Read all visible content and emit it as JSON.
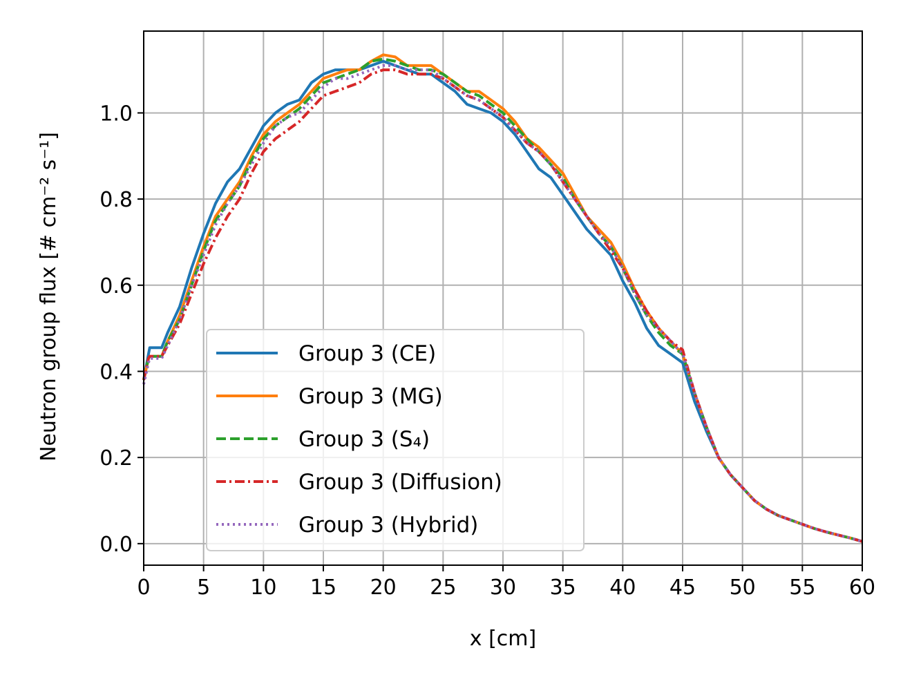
{
  "chart_data": {
    "type": "line",
    "xlabel": "x [cm]",
    "ylabel": "Neutron group flux [# cm⁻² s⁻¹]",
    "xlim": [
      0,
      60
    ],
    "ylim": [
      -0.05,
      1.19
    ],
    "xticks": [
      0,
      5,
      10,
      15,
      20,
      25,
      30,
      35,
      40,
      45,
      50,
      55,
      60
    ],
    "xtick_labels": [
      "0",
      "5",
      "10",
      "15",
      "20",
      "25",
      "30",
      "35",
      "40",
      "45",
      "50",
      "55",
      "60"
    ],
    "yticks": [
      0.0,
      0.2,
      0.4,
      0.6,
      0.8,
      1.0
    ],
    "ytick_labels": [
      "0.0",
      "0.2",
      "0.4",
      "0.6",
      "0.8",
      "1.0"
    ],
    "grid": true,
    "legend_position": "lower-left",
    "series": [
      {
        "name": "Group 3 (CE)",
        "color": "#1f77b4",
        "dash": "solid",
        "points": [
          [
            0,
            0.38
          ],
          [
            0.4,
            0.44
          ],
          [
            0.5,
            0.455
          ],
          [
            1.5,
            0.455
          ],
          [
            2,
            0.49
          ],
          [
            3,
            0.55
          ],
          [
            4,
            0.64
          ],
          [
            5,
            0.72
          ],
          [
            6,
            0.79
          ],
          [
            7,
            0.84
          ],
          [
            8,
            0.87
          ],
          [
            9,
            0.92
          ],
          [
            10,
            0.97
          ],
          [
            11,
            1.0
          ],
          [
            12,
            1.02
          ],
          [
            13,
            1.03
          ],
          [
            14,
            1.07
          ],
          [
            15,
            1.09
          ],
          [
            16,
            1.1
          ],
          [
            17,
            1.1
          ],
          [
            18,
            1.1
          ],
          [
            19,
            1.11
          ],
          [
            20,
            1.12
          ],
          [
            21,
            1.11
          ],
          [
            22,
            1.1
          ],
          [
            23,
            1.09
          ],
          [
            24,
            1.09
          ],
          [
            25,
            1.07
          ],
          [
            26,
            1.05
          ],
          [
            27,
            1.02
          ],
          [
            28,
            1.01
          ],
          [
            29,
            1.0
          ],
          [
            30,
            0.98
          ],
          [
            31,
            0.95
          ],
          [
            32,
            0.91
          ],
          [
            33,
            0.87
          ],
          [
            34,
            0.85
          ],
          [
            35,
            0.81
          ],
          [
            36,
            0.77
          ],
          [
            37,
            0.73
          ],
          [
            38,
            0.7
          ],
          [
            39,
            0.67
          ],
          [
            40,
            0.61
          ],
          [
            41,
            0.56
          ],
          [
            42,
            0.5
          ],
          [
            43,
            0.46
          ],
          [
            44,
            0.44
          ],
          [
            45,
            0.42
          ],
          [
            46,
            0.33
          ],
          [
            47,
            0.26
          ],
          [
            48,
            0.2
          ],
          [
            49,
            0.16
          ],
          [
            50,
            0.13
          ],
          [
            51,
            0.1
          ],
          [
            52,
            0.08
          ],
          [
            53,
            0.065
          ],
          [
            54,
            0.055
          ],
          [
            55,
            0.045
          ],
          [
            56,
            0.035
          ],
          [
            57,
            0.027
          ],
          [
            58,
            0.02
          ],
          [
            59,
            0.013
          ],
          [
            60,
            0.005
          ]
        ]
      },
      {
        "name": "Group 3 (MG)",
        "color": "#ff7f0e",
        "dash": "solid",
        "points": [
          [
            0,
            0.38
          ],
          [
            0.4,
            0.43
          ],
          [
            0.5,
            0.435
          ],
          [
            1.5,
            0.435
          ],
          [
            2,
            0.47
          ],
          [
            3,
            0.53
          ],
          [
            4,
            0.61
          ],
          [
            5,
            0.69
          ],
          [
            6,
            0.76
          ],
          [
            7,
            0.8
          ],
          [
            8,
            0.84
          ],
          [
            9,
            0.9
          ],
          [
            10,
            0.95
          ],
          [
            11,
            0.98
          ],
          [
            12,
            1.0
          ],
          [
            13,
            1.02
          ],
          [
            14,
            1.05
          ],
          [
            15,
            1.08
          ],
          [
            16,
            1.09
          ],
          [
            17,
            1.1
          ],
          [
            18,
            1.1
          ],
          [
            19,
            1.12
          ],
          [
            20,
            1.135
          ],
          [
            21,
            1.13
          ],
          [
            22,
            1.11
          ],
          [
            23,
            1.11
          ],
          [
            24,
            1.11
          ],
          [
            25,
            1.09
          ],
          [
            26,
            1.07
          ],
          [
            27,
            1.05
          ],
          [
            28,
            1.05
          ],
          [
            29,
            1.03
          ],
          [
            30,
            1.01
          ],
          [
            31,
            0.98
          ],
          [
            32,
            0.94
          ],
          [
            33,
            0.92
          ],
          [
            34,
            0.89
          ],
          [
            35,
            0.86
          ],
          [
            36,
            0.81
          ],
          [
            37,
            0.76
          ],
          [
            38,
            0.73
          ],
          [
            39,
            0.7
          ],
          [
            40,
            0.65
          ],
          [
            41,
            0.59
          ],
          [
            42,
            0.54
          ],
          [
            43,
            0.5
          ],
          [
            44,
            0.47
          ],
          [
            45,
            0.44
          ],
          [
            46,
            0.35
          ],
          [
            47,
            0.27
          ],
          [
            48,
            0.2
          ],
          [
            49,
            0.16
          ],
          [
            50,
            0.13
          ],
          [
            51,
            0.1
          ],
          [
            52,
            0.08
          ],
          [
            53,
            0.065
          ],
          [
            54,
            0.055
          ],
          [
            55,
            0.045
          ],
          [
            56,
            0.035
          ],
          [
            57,
            0.027
          ],
          [
            58,
            0.02
          ],
          [
            59,
            0.013
          ],
          [
            60,
            0.005
          ]
        ]
      },
      {
        "name": "Group 3 (S₄)",
        "color": "#2ca02c",
        "dash": "dashed",
        "points": [
          [
            0,
            0.38
          ],
          [
            0.4,
            0.43
          ],
          [
            0.5,
            0.435
          ],
          [
            1.5,
            0.435
          ],
          [
            2,
            0.47
          ],
          [
            3,
            0.52
          ],
          [
            4,
            0.6
          ],
          [
            5,
            0.68
          ],
          [
            6,
            0.75
          ],
          [
            7,
            0.79
          ],
          [
            8,
            0.83
          ],
          [
            9,
            0.89
          ],
          [
            10,
            0.94
          ],
          [
            11,
            0.97
          ],
          [
            12,
            0.99
          ],
          [
            13,
            1.01
          ],
          [
            14,
            1.04
          ],
          [
            15,
            1.07
          ],
          [
            16,
            1.08
          ],
          [
            17,
            1.09
          ],
          [
            18,
            1.1
          ],
          [
            19,
            1.12
          ],
          [
            20,
            1.125
          ],
          [
            21,
            1.12
          ],
          [
            22,
            1.11
          ],
          [
            23,
            1.1
          ],
          [
            24,
            1.1
          ],
          [
            25,
            1.09
          ],
          [
            26,
            1.07
          ],
          [
            27,
            1.05
          ],
          [
            28,
            1.04
          ],
          [
            29,
            1.02
          ],
          [
            30,
            1.0
          ],
          [
            31,
            0.97
          ],
          [
            32,
            0.94
          ],
          [
            33,
            0.91
          ],
          [
            34,
            0.88
          ],
          [
            35,
            0.85
          ],
          [
            36,
            0.8
          ],
          [
            37,
            0.76
          ],
          [
            38,
            0.72
          ],
          [
            39,
            0.69
          ],
          [
            40,
            0.64
          ],
          [
            41,
            0.58
          ],
          [
            42,
            0.53
          ],
          [
            43,
            0.49
          ],
          [
            44,
            0.46
          ],
          [
            45,
            0.44
          ],
          [
            46,
            0.35
          ],
          [
            47,
            0.27
          ],
          [
            48,
            0.2
          ],
          [
            49,
            0.16
          ],
          [
            50,
            0.13
          ],
          [
            51,
            0.1
          ],
          [
            52,
            0.08
          ],
          [
            53,
            0.065
          ],
          [
            54,
            0.055
          ],
          [
            55,
            0.045
          ],
          [
            56,
            0.035
          ],
          [
            57,
            0.027
          ],
          [
            58,
            0.02
          ],
          [
            59,
            0.013
          ],
          [
            60,
            0.005
          ]
        ]
      },
      {
        "name": "Group 3 (Diffusion)",
        "color": "#d62728",
        "dash": "dashdot",
        "points": [
          [
            0,
            0.38
          ],
          [
            0.4,
            0.43
          ],
          [
            0.5,
            0.435
          ],
          [
            1.5,
            0.435
          ],
          [
            2,
            0.46
          ],
          [
            3,
            0.51
          ],
          [
            4,
            0.58
          ],
          [
            5,
            0.65
          ],
          [
            6,
            0.71
          ],
          [
            7,
            0.76
          ],
          [
            8,
            0.8
          ],
          [
            9,
            0.86
          ],
          [
            10,
            0.91
          ],
          [
            11,
            0.94
          ],
          [
            12,
            0.96
          ],
          [
            13,
            0.98
          ],
          [
            14,
            1.01
          ],
          [
            15,
            1.04
          ],
          [
            16,
            1.05
          ],
          [
            17,
            1.06
          ],
          [
            18,
            1.07
          ],
          [
            19,
            1.09
          ],
          [
            20,
            1.1
          ],
          [
            21,
            1.1
          ],
          [
            22,
            1.09
          ],
          [
            23,
            1.09
          ],
          [
            24,
            1.09
          ],
          [
            25,
            1.08
          ],
          [
            26,
            1.06
          ],
          [
            27,
            1.04
          ],
          [
            28,
            1.03
          ],
          [
            29,
            1.01
          ],
          [
            30,
            0.99
          ],
          [
            31,
            0.96
          ],
          [
            32,
            0.93
          ],
          [
            33,
            0.91
          ],
          [
            34,
            0.88
          ],
          [
            35,
            0.84
          ],
          [
            36,
            0.8
          ],
          [
            37,
            0.76
          ],
          [
            38,
            0.72
          ],
          [
            39,
            0.68
          ],
          [
            40,
            0.64
          ],
          [
            41,
            0.59
          ],
          [
            42,
            0.54
          ],
          [
            43,
            0.5
          ],
          [
            44,
            0.47
          ],
          [
            45,
            0.45
          ],
          [
            46,
            0.35
          ],
          [
            47,
            0.27
          ],
          [
            48,
            0.2
          ],
          [
            49,
            0.16
          ],
          [
            50,
            0.13
          ],
          [
            51,
            0.1
          ],
          [
            52,
            0.08
          ],
          [
            53,
            0.065
          ],
          [
            54,
            0.055
          ],
          [
            55,
            0.045
          ],
          [
            56,
            0.035
          ],
          [
            57,
            0.027
          ],
          [
            58,
            0.02
          ],
          [
            59,
            0.013
          ],
          [
            60,
            0.005
          ]
        ]
      },
      {
        "name": "Group 3 (Hybrid)",
        "color": "#9467bd",
        "dash": "dotted",
        "points": [
          [
            0,
            0.37
          ],
          [
            0.4,
            0.42
          ],
          [
            0.5,
            0.43
          ],
          [
            1.5,
            0.43
          ],
          [
            2,
            0.46
          ],
          [
            3,
            0.52
          ],
          [
            4,
            0.6
          ],
          [
            5,
            0.67
          ],
          [
            6,
            0.74
          ],
          [
            7,
            0.79
          ],
          [
            8,
            0.83
          ],
          [
            9,
            0.88
          ],
          [
            10,
            0.93
          ],
          [
            11,
            0.97
          ],
          [
            12,
            0.99
          ],
          [
            13,
            1.0
          ],
          [
            14,
            1.03
          ],
          [
            15,
            1.06
          ],
          [
            16,
            1.08
          ],
          [
            17,
            1.08
          ],
          [
            18,
            1.09
          ],
          [
            19,
            1.1
          ],
          [
            20,
            1.11
          ],
          [
            21,
            1.11
          ],
          [
            22,
            1.1
          ],
          [
            23,
            1.1
          ],
          [
            24,
            1.1
          ],
          [
            25,
            1.08
          ],
          [
            26,
            1.06
          ],
          [
            27,
            1.04
          ],
          [
            28,
            1.03
          ],
          [
            29,
            1.01
          ],
          [
            30,
            0.99
          ],
          [
            31,
            0.96
          ],
          [
            32,
            0.93
          ],
          [
            33,
            0.91
          ],
          [
            34,
            0.88
          ],
          [
            35,
            0.84
          ],
          [
            36,
            0.8
          ],
          [
            37,
            0.76
          ],
          [
            38,
            0.72
          ],
          [
            39,
            0.69
          ],
          [
            40,
            0.64
          ],
          [
            41,
            0.58
          ],
          [
            42,
            0.53
          ],
          [
            43,
            0.5
          ],
          [
            44,
            0.47
          ],
          [
            45,
            0.44
          ],
          [
            46,
            0.35
          ],
          [
            47,
            0.27
          ],
          [
            48,
            0.2
          ],
          [
            49,
            0.16
          ],
          [
            50,
            0.13
          ],
          [
            51,
            0.1
          ],
          [
            52,
            0.08
          ],
          [
            53,
            0.065
          ],
          [
            54,
            0.055
          ],
          [
            55,
            0.045
          ],
          [
            56,
            0.035
          ],
          [
            57,
            0.027
          ],
          [
            58,
            0.02
          ],
          [
            59,
            0.013
          ],
          [
            60,
            0.005
          ]
        ]
      }
    ]
  }
}
